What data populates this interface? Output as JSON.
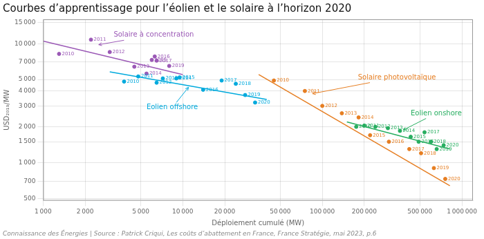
{
  "chart_data": {
    "type": "scatter",
    "title": "Courbes d’apprentissage pour l’éolien et le solaire à l’horizon 2020",
    "xlabel": "Déploiement cumulé (MW)",
    "ylabel": "USD₂₀₁₉/MW",
    "footnote": "Connaissance des Énergies | Source : Patrick Criqui, Les coûts d’abattement en France, France Stratégie, mai 2023, p.6",
    "log": true,
    "grid": true,
    "xlim": [
      1000,
      1200000
    ],
    "ylim": [
      480,
      16000
    ],
    "xticks": [
      {
        "value": 1000,
        "label": "1 000"
      },
      {
        "value": 2000,
        "label": "2 000"
      },
      {
        "value": 5000,
        "label": "5 000"
      },
      {
        "value": 10000,
        "label": "10 000"
      },
      {
        "value": 20000,
        "label": "20 000"
      },
      {
        "value": 50000,
        "label": "50 000"
      },
      {
        "value": 100000,
        "label": "100 000"
      },
      {
        "value": 200000,
        "label": "200 000"
      },
      {
        "value": 500000,
        "label": "500 000"
      },
      {
        "value": 1000000,
        "label": "1 000 000"
      }
    ],
    "yticks": [
      500,
      700,
      {
        "value": 1000,
        "label": "1 000"
      },
      {
        "value": 1500,
        "label": "1 500"
      },
      {
        "value": 2000,
        "label": "2 000"
      },
      {
        "value": 3000,
        "label": "3 000"
      },
      {
        "value": 4000,
        "label": "4 000"
      },
      {
        "value": 5000,
        "label": "5 000"
      },
      {
        "value": 7000,
        "label": "7 000"
      },
      {
        "value": 10000,
        "label": "10 000"
      },
      {
        "value": 15000,
        "label": "15 000"
      }
    ],
    "series": [
      {
        "name": "Solaire à concentration",
        "color": "#9b59b6",
        "labels": [
          "2010",
          "2011",
          "2012",
          "2013",
          "2014",
          "2015",
          "2016",
          "2017",
          "2019"
        ],
        "x": [
          1300,
          2200,
          3000,
          4500,
          5500,
          6000,
          6300,
          6500,
          8000
        ],
        "values": [
          8200,
          10800,
          8500,
          6400,
          5600,
          7300,
          7800,
          7200,
          6500
        ],
        "trend": {
          "x": [
            1000,
            10000
          ],
          "values": [
            10500,
            5500
          ]
        },
        "annotation": {
          "x": 2500,
          "y": 9800,
          "text_x": 3200,
          "text_y": 11800
        }
      },
      {
        "name": "Eolien offshore",
        "color": "#00aadd",
        "labels": [
          "2010",
          "2011",
          "2012",
          "2013",
          "2014",
          "2015",
          "2016",
          "2017",
          "2018",
          "2019",
          "2020"
        ],
        "x": [
          3800,
          4800,
          6500,
          7200,
          9000,
          9500,
          14000,
          19000,
          24000,
          28000,
          33000
        ],
        "values": [
          4800,
          5300,
          4700,
          5100,
          5100,
          5200,
          4100,
          4900,
          4600,
          3700,
          3200
        ],
        "trend": {
          "x": [
            3000,
            40000
          ],
          "values": [
            5800,
            3400
          ]
        },
        "annotation": {
          "x": 11000,
          "y": 4300,
          "text_x": 5500,
          "text_y": 2900
        }
      },
      {
        "name": "Solaire photovoltaïque",
        "color": "#e67e22",
        "labels": [
          "2010",
          "2011",
          "2012",
          "2013",
          "2014",
          "2015",
          "2016",
          "2017",
          "2018",
          "2019",
          "2020"
        ],
        "x": [
          45000,
          75000,
          100000,
          138000,
          182000,
          220000,
          300000,
          420000,
          510000,
          630000,
          760000
        ],
        "values": [
          4900,
          4000,
          3000,
          2600,
          2400,
          1700,
          1500,
          1300,
          1200,
          900,
          730
        ],
        "trend": {
          "x": [
            35000,
            820000
          ],
          "values": [
            5500,
            640
          ]
        },
        "annotation": {
          "x": 85000,
          "y": 3800,
          "text_x": 180000,
          "text_y": 5200
        }
      },
      {
        "name": "Eolien onshore",
        "color": "#27ae60",
        "labels": [
          "2010",
          "2011",
          "2012",
          "2013",
          "2014",
          "2015",
          "2016",
          "2017",
          "2018",
          "2019",
          "2020"
        ],
        "x": [
          175000,
          200000,
          240000,
          295000,
          360000,
          430000,
          490000,
          540000,
          600000,
          660000,
          740000
        ],
        "values": [
          2000,
          2050,
          2000,
          1950,
          1850,
          1650,
          1500,
          1800,
          1500,
          1300,
          1400
        ],
        "trend": {
          "x": [
            150000,
            820000
          ],
          "values": [
            2200,
            1300
          ]
        },
        "annotation": {
          "x": 380000,
          "y": 1880,
          "text_x": 430000,
          "text_y": 2600
        }
      }
    ]
  }
}
